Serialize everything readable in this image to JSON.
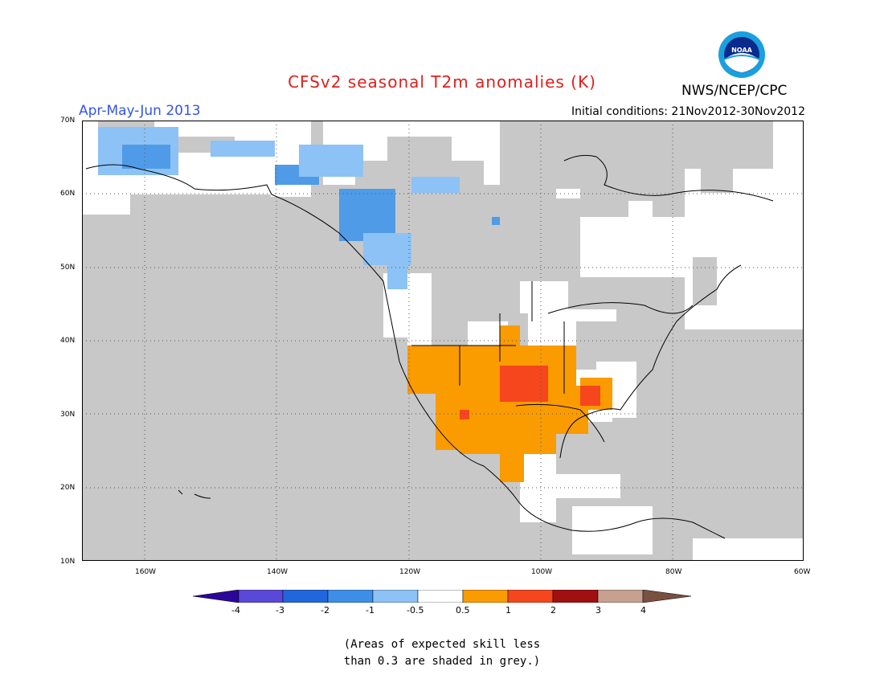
{
  "header": {
    "title": "CFSv2 seasonal T2m anomalies (K)",
    "agency": "NWS/NCEP/CPC",
    "period": "Apr-May-Jun 2013",
    "initial_conditions": "Initial conditions: 21Nov2012-30Nov2012",
    "logo_text": "NOAA"
  },
  "map": {
    "lat_labels": [
      "70N",
      "60N",
      "50N",
      "40N",
      "30N",
      "20N",
      "10N"
    ],
    "lon_labels": [
      "160W",
      "140W",
      "120W",
      "100W",
      "80W",
      "60W"
    ],
    "colors": {
      "skill_mask": "#c8c8c8",
      "neutral": "#ffffff",
      "cold_light": "#8cc2f5",
      "cold_mid": "#4f9be8",
      "warm_light": "#fa9b00",
      "warm_mid": "#f5461e"
    }
  },
  "colorbar": {
    "tick_labels": [
      "-4",
      "-3",
      "-2",
      "-1",
      "-0.5",
      "0.5",
      "1",
      "2",
      "3",
      "4"
    ],
    "colors": [
      "#2a079a",
      "#5a48d8",
      "#2266dd",
      "#3d8ee6",
      "#8cc2f5",
      "#ffffff",
      "#fa9b00",
      "#f5461e",
      "#a01010",
      "#c8a090",
      "#7a5040"
    ]
  },
  "footnote": {
    "line1": "(Areas of expected skill less",
    "line2": "than 0.3 are shaded in grey.)"
  }
}
